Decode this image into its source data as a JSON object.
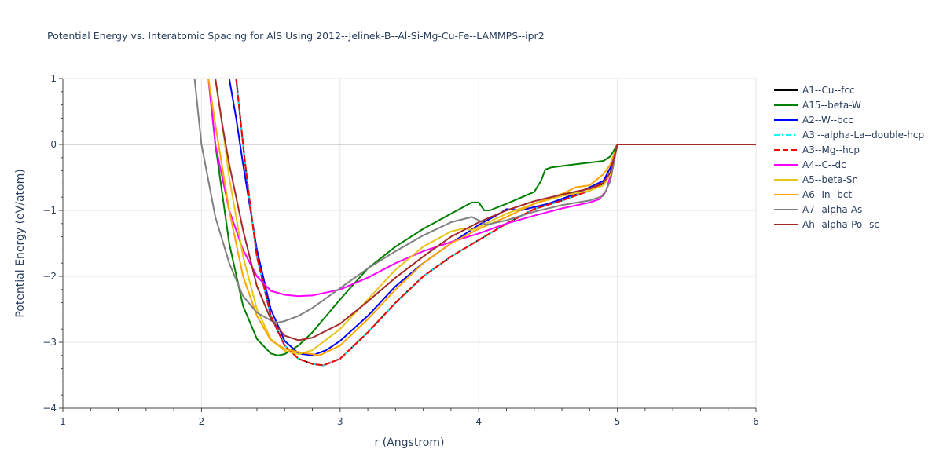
{
  "chart_data": {
    "type": "line",
    "title": "Potential Energy vs. Interatomic Spacing for AlS Using 2012--Jelinek-B--Al-Si-Mg-Cu-Fe--LAMMPS--ipr2",
    "xlabel": "r (Angstrom)",
    "ylabel": "Potential Energy (eV/atom)",
    "xlim": [
      1,
      6
    ],
    "ylim": [
      -4,
      1
    ],
    "xticks": [
      "1",
      "2",
      "3",
      "4",
      "5",
      "6"
    ],
    "yticks": [
      "1",
      "0",
      "−1",
      "−2",
      "−3",
      "−4"
    ],
    "grid": true,
    "legend_position": "right",
    "series": [
      {
        "name": "A1--Cu--fcc",
        "color": "#000000",
        "dash": "solid",
        "x": [
          2.25,
          2.28,
          2.31,
          2.35,
          2.4,
          2.5,
          2.6,
          2.7,
          2.8,
          2.88,
          3.0,
          3.2,
          3.4,
          3.6,
          3.8,
          4.0,
          4.2,
          4.4,
          4.6,
          4.8,
          4.9,
          4.95,
          5.0,
          6.0
        ],
        "y": [
          1.0,
          0.4,
          -0.2,
          -0.9,
          -1.7,
          -2.6,
          -3.05,
          -3.25,
          -3.33,
          -3.35,
          -3.25,
          -2.85,
          -2.4,
          -2.0,
          -1.7,
          -1.45,
          -1.2,
          -0.98,
          -0.85,
          -0.7,
          -0.6,
          -0.45,
          0.0,
          0.0
        ]
      },
      {
        "name": "A15--beta-W",
        "color": "#008000",
        "dash": "solid",
        "x": [
          2.05,
          2.1,
          2.2,
          2.3,
          2.4,
          2.5,
          2.55,
          2.6,
          2.7,
          2.8,
          3.0,
          3.2,
          3.4,
          3.6,
          3.8,
          3.95,
          4.0,
          4.04,
          4.08,
          4.2,
          4.4,
          4.45,
          4.48,
          4.52,
          4.7,
          4.9,
          4.95,
          5.0,
          6.0
        ],
        "y": [
          1.0,
          0.0,
          -1.5,
          -2.45,
          -2.95,
          -3.17,
          -3.2,
          -3.18,
          -3.05,
          -2.85,
          -2.35,
          -1.88,
          -1.55,
          -1.28,
          -1.05,
          -0.88,
          -0.88,
          -1.0,
          -1.0,
          -0.9,
          -0.72,
          -0.55,
          -0.38,
          -0.35,
          -0.3,
          -0.25,
          -0.18,
          0.0,
          0.0
        ]
      },
      {
        "name": "A2--W--bcc",
        "color": "#0000ff",
        "dash": "solid",
        "x": [
          2.2,
          2.25,
          2.3,
          2.4,
          2.5,
          2.6,
          2.7,
          2.8,
          2.9,
          3.0,
          3.2,
          3.4,
          3.6,
          3.8,
          4.0,
          4.15,
          4.2,
          4.3,
          4.5,
          4.7,
          4.9,
          4.95,
          5.0,
          6.0
        ],
        "y": [
          1.0,
          0.4,
          -0.3,
          -1.6,
          -2.5,
          -2.98,
          -3.17,
          -3.2,
          -3.12,
          -2.98,
          -2.6,
          -2.15,
          -1.8,
          -1.5,
          -1.22,
          -1.05,
          -0.98,
          -1.0,
          -0.9,
          -0.75,
          -0.55,
          -0.35,
          0.0,
          0.0
        ]
      },
      {
        "name": "A3'--alpha-La--double-hcp",
        "color": "#00ffff",
        "dash": "dashdot",
        "x": [
          2.25,
          2.28,
          2.31,
          2.35,
          2.4,
          2.5,
          2.6,
          2.7,
          2.8,
          2.88,
          3.0,
          3.2,
          3.4,
          3.6,
          3.8,
          4.0,
          4.2,
          4.4,
          4.6,
          4.8,
          4.9,
          4.95,
          5.0,
          6.0
        ],
        "y": [
          1.0,
          0.4,
          -0.2,
          -0.9,
          -1.7,
          -2.6,
          -3.05,
          -3.25,
          -3.33,
          -3.35,
          -3.25,
          -2.85,
          -2.4,
          -2.0,
          -1.7,
          -1.45,
          -1.2,
          -0.98,
          -0.85,
          -0.7,
          -0.6,
          -0.45,
          0.0,
          0.0
        ]
      },
      {
        "name": "A3--Mg--hcp",
        "color": "#ff0000",
        "dash": "dash",
        "x": [
          2.25,
          2.28,
          2.31,
          2.35,
          2.4,
          2.5,
          2.6,
          2.7,
          2.8,
          2.88,
          3.0,
          3.2,
          3.4,
          3.6,
          3.8,
          4.0,
          4.2,
          4.4,
          4.6,
          4.8,
          4.9,
          4.95,
          5.0,
          6.0
        ],
        "y": [
          1.0,
          0.4,
          -0.2,
          -0.9,
          -1.7,
          -2.6,
          -3.05,
          -3.25,
          -3.33,
          -3.35,
          -3.25,
          -2.85,
          -2.4,
          -2.0,
          -1.7,
          -1.45,
          -1.2,
          -0.98,
          -0.85,
          -0.7,
          -0.6,
          -0.45,
          0.0,
          0.0
        ]
      },
      {
        "name": "A4--C--dc",
        "color": "#ff00ff",
        "dash": "solid",
        "x": [
          2.05,
          2.1,
          2.2,
          2.3,
          2.4,
          2.5,
          2.6,
          2.7,
          2.8,
          3.0,
          3.2,
          3.4,
          3.6,
          3.8,
          4.0,
          4.2,
          4.4,
          4.6,
          4.8,
          4.87,
          4.92,
          4.96,
          5.0,
          6.0
        ],
        "y": [
          1.0,
          0.0,
          -1.0,
          -1.6,
          -2.0,
          -2.22,
          -2.28,
          -2.3,
          -2.29,
          -2.2,
          -2.02,
          -1.8,
          -1.62,
          -1.48,
          -1.35,
          -1.2,
          -1.08,
          -0.97,
          -0.88,
          -0.83,
          -0.7,
          -0.4,
          0.0,
          0.0
        ]
      },
      {
        "name": "A5--beta-Sn",
        "color": "#e6c619",
        "dash": "solid",
        "x": [
          2.1,
          2.15,
          2.2,
          2.3,
          2.4,
          2.5,
          2.6,
          2.7,
          2.8,
          3.0,
          3.2,
          3.4,
          3.6,
          3.8,
          3.9,
          3.95,
          4.0,
          4.2,
          4.4,
          4.6,
          4.8,
          4.9,
          4.95,
          5.0,
          6.0
        ],
        "y": [
          1.0,
          0.3,
          -0.5,
          -1.7,
          -2.5,
          -2.95,
          -3.13,
          -3.18,
          -3.12,
          -2.8,
          -2.35,
          -1.9,
          -1.55,
          -1.32,
          -1.27,
          -1.3,
          -1.25,
          -1.05,
          -0.9,
          -0.78,
          -0.7,
          -0.62,
          -0.45,
          0.0,
          0.0
        ]
      },
      {
        "name": "A6--In--bct",
        "color": "#ffa500",
        "dash": "solid",
        "x": [
          2.05,
          2.1,
          2.2,
          2.3,
          2.4,
          2.5,
          2.6,
          2.7,
          2.8,
          2.85,
          3.0,
          3.2,
          3.4,
          3.6,
          3.8,
          4.0,
          4.2,
          4.4,
          4.6,
          4.7,
          4.8,
          4.9,
          4.95,
          5.0,
          6.0
        ],
        "y": [
          1.0,
          0.3,
          -1.0,
          -2.0,
          -2.6,
          -2.97,
          -3.1,
          -3.15,
          -3.18,
          -3.2,
          -3.05,
          -2.65,
          -2.2,
          -1.8,
          -1.5,
          -1.28,
          -1.1,
          -0.9,
          -0.75,
          -0.65,
          -0.62,
          -0.45,
          -0.3,
          0.0,
          0.0
        ]
      },
      {
        "name": "A7--alpha-As",
        "color": "#808080",
        "dash": "solid",
        "x": [
          1.95,
          2.0,
          2.1,
          2.2,
          2.3,
          2.4,
          2.5,
          2.55,
          2.6,
          2.7,
          2.8,
          3.0,
          3.2,
          3.4,
          3.6,
          3.8,
          3.95,
          4.0,
          4.05,
          4.2,
          4.4,
          4.6,
          4.8,
          4.9,
          4.95,
          5.0,
          6.0
        ],
        "y": [
          1.0,
          0.0,
          -1.1,
          -1.8,
          -2.3,
          -2.55,
          -2.67,
          -2.7,
          -2.68,
          -2.6,
          -2.48,
          -2.18,
          -1.88,
          -1.62,
          -1.38,
          -1.18,
          -1.1,
          -1.15,
          -1.22,
          -1.15,
          -1.02,
          -0.92,
          -0.85,
          -0.78,
          -0.55,
          0.0,
          0.0
        ]
      },
      {
        "name": "Ah--alpha-Po--sc",
        "color": "#a52a2a",
        "dash": "solid",
        "x": [
          2.1,
          2.15,
          2.2,
          2.3,
          2.4,
          2.5,
          2.6,
          2.7,
          2.8,
          3.0,
          3.2,
          3.4,
          3.6,
          3.8,
          4.0,
          4.2,
          4.4,
          4.6,
          4.8,
          4.9,
          4.95,
          5.0,
          6.0
        ],
        "y": [
          1.0,
          0.3,
          -0.3,
          -1.3,
          -2.15,
          -2.65,
          -2.9,
          -2.97,
          -2.93,
          -2.72,
          -2.38,
          -2.02,
          -1.7,
          -1.4,
          -1.18,
          -1.0,
          -0.86,
          -0.76,
          -0.67,
          -0.58,
          -0.42,
          0.0,
          0.0
        ]
      }
    ]
  }
}
